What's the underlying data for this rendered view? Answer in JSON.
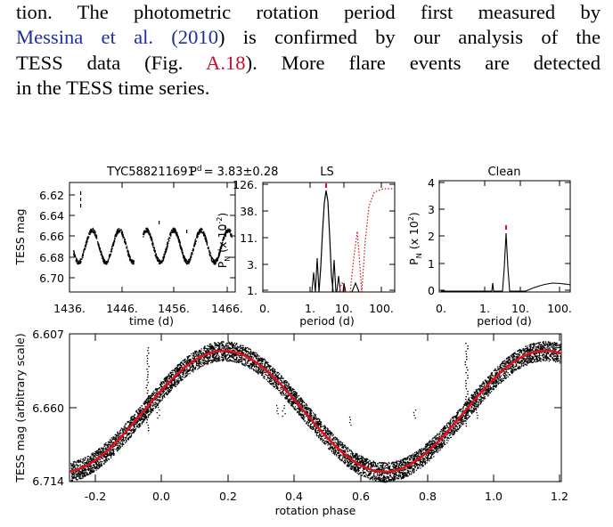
{
  "paragraph": {
    "l1": "tion. The photometric rotation period first measured by",
    "l2_cite_a": "Messina et al. (",
    "l2_cite_year": "2010",
    "l2_cite_close": ")",
    "l2_rest": " is confirmed by our analysis of the",
    "l3_pre": "TESS data (Fig. ",
    "l3_ref": "A.18",
    "l3_post": "). More flare events are detected",
    "l4": "in the TESS time series."
  },
  "figure": {
    "header": {
      "star": "TYC588211691",
      "period_label_base": "P",
      "period_label_sup": "d",
      "period_value": "= 3.83±0.28"
    },
    "panel_lightcurve": {
      "ylabel": "TESS mag",
      "xlabel": "time (d)",
      "yticks": [
        "6.62",
        "6.64",
        "6.66",
        "6.68",
        "6.70"
      ],
      "xticks": [
        "1436.",
        "1446.",
        "1456.",
        "1466."
      ]
    },
    "panel_ls": {
      "title": "LS",
      "ylabel_base": "P",
      "ylabel_sub": "N",
      "ylabel_rest": "(x 10",
      "ylabel_sup": "-2",
      "ylabel_close": ")",
      "xlabel": "period (d)",
      "yticks": [
        "126.",
        "38.",
        "11.",
        "3.",
        "1."
      ],
      "xticks": [
        "0.",
        "1.",
        "10.",
        "100."
      ]
    },
    "panel_clean": {
      "title": "Clean",
      "ylabel_base": "P",
      "ylabel_sub": "N",
      "ylabel_rest": "(x 10",
      "ylabel_sup": "2",
      "ylabel_close": ")",
      "xlabel": "period (d)",
      "yticks": [
        "4",
        "3",
        "2",
        "1",
        "0"
      ],
      "xticks": [
        "0.",
        "1.",
        "10.",
        "100."
      ]
    },
    "panel_phase": {
      "ylabel": "TESS mag (arbitrary scale)",
      "xlabel": "rotation phase",
      "yticks": [
        "6.607",
        "6.660",
        "6.714"
      ],
      "xticks": [
        "-0.2",
        "0.0",
        "0.2",
        "0.4",
        "0.6",
        "0.8",
        "1.0",
        "1.2"
      ]
    },
    "colors": {
      "data": "#000000",
      "model": "#e0101a",
      "dotted": "#d01010"
    }
  }
}
